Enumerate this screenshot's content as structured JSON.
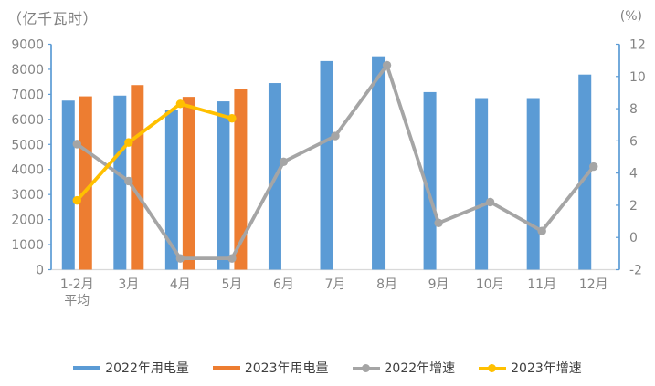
{
  "chart_data": {
    "type": "combo-bar-line",
    "title": "",
    "left_axis": {
      "title": "（亿千瓦时）",
      "min": 0,
      "max": 9000,
      "step": 1000
    },
    "right_axis": {
      "title": "(%)",
      "min": -2,
      "max": 12,
      "step": 2
    },
    "categories": [
      "1-2月\n平均",
      "3月",
      "4月",
      "5月",
      "6月",
      "7月",
      "8月",
      "9月",
      "10月",
      "11月",
      "12月"
    ],
    "series": [
      {
        "name": "2022年用电量",
        "type": "bar",
        "axis": "left",
        "color": "#5B9BD5",
        "values": [
          6750,
          6950,
          6360,
          6720,
          7450,
          8330,
          8520,
          7090,
          6850,
          6850,
          7790
        ]
      },
      {
        "name": "2023年用电量",
        "type": "bar",
        "axis": "left",
        "color": "#ED7D31",
        "values": [
          6920,
          7370,
          6900,
          7220,
          null,
          null,
          null,
          null,
          null,
          null,
          null
        ]
      },
      {
        "name": "2022年增速",
        "type": "line",
        "axis": "right",
        "color": "#A5A5A5",
        "values": [
          5.8,
          3.5,
          -1.3,
          -1.3,
          4.7,
          6.3,
          10.7,
          0.9,
          2.2,
          0.4,
          4.4
        ]
      },
      {
        "name": "2023年增速",
        "type": "line",
        "axis": "right",
        "color": "#FFC000",
        "values": [
          2.3,
          5.9,
          8.3,
          7.4,
          null,
          null,
          null,
          null,
          null,
          null,
          null
        ]
      }
    ],
    "legend": {
      "position": "bottom",
      "items": [
        "2022年用电量",
        "2023年用电量",
        "2022年增速",
        "2023年增速"
      ]
    },
    "grid": false,
    "colors": {
      "value_axis_line": "#5B9BD5",
      "category_axis_line": "#D9D9D9",
      "tick_label": "#848484",
      "legend_text": "#3F3F3F",
      "axis_title": "#7F7F7F"
    }
  }
}
